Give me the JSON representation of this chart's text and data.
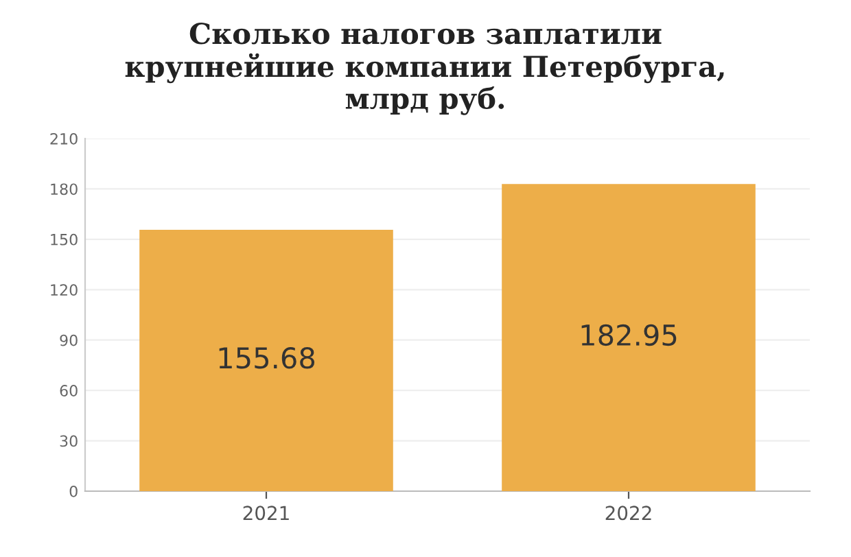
{
  "chart_data": {
    "type": "bar",
    "title": "Сколько налогов заплатили\nкрупнейшие компании Петербурга,\nмлрд руб.",
    "categories": [
      "2021",
      "2022"
    ],
    "values": [
      155.68,
      182.95
    ],
    "color": "#edae49",
    "ylim": [
      0,
      210
    ],
    "yticks": [
      0,
      30,
      60,
      90,
      120,
      150,
      180,
      210
    ],
    "grid": "y",
    "data_labels": true
  }
}
